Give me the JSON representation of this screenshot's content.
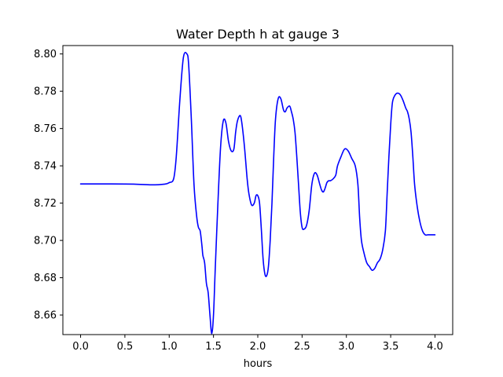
{
  "chart_data": {
    "type": "line",
    "title": "Water Depth h at gauge 3",
    "xlabel": "hours",
    "ylabel": "",
    "xlim": [
      -0.2,
      4.2
    ],
    "ylim": [
      8.6495,
      8.8045
    ],
    "xticks": [
      0.0,
      0.5,
      1.0,
      1.5,
      2.0,
      2.5,
      3.0,
      3.5,
      4.0
    ],
    "xtick_labels": [
      "0.0",
      "0.5",
      "1.0",
      "1.5",
      "2.0",
      "2.5",
      "3.0",
      "3.5",
      "4.0"
    ],
    "yticks": [
      8.66,
      8.68,
      8.7,
      8.72,
      8.74,
      8.76,
      8.78,
      8.8
    ],
    "ytick_labels": [
      "8.66",
      "8.68",
      "8.70",
      "8.72",
      "8.74",
      "8.76",
      "8.78",
      "8.80"
    ],
    "grid": false,
    "series": [
      {
        "color": "#0000ff",
        "x": [
          0.0,
          0.3,
          0.6,
          0.8,
          0.95,
          1.0,
          1.05,
          1.08,
          1.12,
          1.16,
          1.2,
          1.22,
          1.25,
          1.28,
          1.31,
          1.33,
          1.35,
          1.37,
          1.38,
          1.4,
          1.42,
          1.44,
          1.46,
          1.48,
          1.5,
          1.52,
          1.55,
          1.58,
          1.61,
          1.64,
          1.67,
          1.7,
          1.73,
          1.75,
          1.77,
          1.8,
          1.82,
          1.85,
          1.88,
          1.9,
          1.93,
          1.96,
          1.98,
          2.0,
          2.02,
          2.04,
          2.06,
          2.08,
          2.1,
          2.12,
          2.14,
          2.16,
          2.18,
          2.2,
          2.23,
          2.26,
          2.29,
          2.31,
          2.33,
          2.36,
          2.38,
          2.4,
          2.42,
          2.44,
          2.46,
          2.48,
          2.5,
          2.52,
          2.55,
          2.58,
          2.61,
          2.64,
          2.67,
          2.7,
          2.72,
          2.74,
          2.76,
          2.78,
          2.8,
          2.82,
          2.85,
          2.88,
          2.9,
          2.94,
          2.98,
          3.02,
          3.06,
          3.1,
          3.13,
          3.15,
          3.17,
          3.2,
          3.23,
          3.26,
          3.29,
          3.32,
          3.35,
          3.38,
          3.41,
          3.44,
          3.46,
          3.48,
          3.5,
          3.52,
          3.55,
          3.58,
          3.61,
          3.64,
          3.67,
          3.69,
          3.71,
          3.73,
          3.75,
          3.77,
          3.8,
          3.83,
          3.86,
          3.89,
          3.92,
          3.95,
          3.98,
          4.0
        ],
        "y": [
          8.7303,
          8.7303,
          8.7302,
          8.7298,
          8.7302,
          8.731,
          8.733,
          8.745,
          8.775,
          8.798,
          8.8,
          8.794,
          8.765,
          8.73,
          8.713,
          8.707,
          8.705,
          8.697,
          8.692,
          8.688,
          8.677,
          8.672,
          8.66,
          8.65,
          8.66,
          8.685,
          8.72,
          8.75,
          8.764,
          8.763,
          8.753,
          8.748,
          8.749,
          8.758,
          8.764,
          8.767,
          8.763,
          8.75,
          8.733,
          8.725,
          8.719,
          8.72,
          8.724,
          8.724,
          8.72,
          8.706,
          8.69,
          8.682,
          8.681,
          8.686,
          8.7,
          8.72,
          8.745,
          8.765,
          8.776,
          8.776,
          8.77,
          8.769,
          8.771,
          8.772,
          8.769,
          8.765,
          8.758,
          8.745,
          8.73,
          8.715,
          8.707,
          8.706,
          8.708,
          8.716,
          8.73,
          8.736,
          8.735,
          8.73,
          8.727,
          8.726,
          8.728,
          8.731,
          8.732,
          8.732,
          8.733,
          8.735,
          8.74,
          8.745,
          8.749,
          8.748,
          8.744,
          8.74,
          8.73,
          8.712,
          8.7,
          8.693,
          8.688,
          8.686,
          8.684,
          8.685,
          8.688,
          8.69,
          8.695,
          8.705,
          8.725,
          8.745,
          8.762,
          8.774,
          8.778,
          8.779,
          8.778,
          8.775,
          8.771,
          8.769,
          8.765,
          8.758,
          8.745,
          8.73,
          8.718,
          8.71,
          8.705,
          8.703,
          8.703,
          8.703,
          8.703,
          8.703
        ]
      }
    ]
  }
}
